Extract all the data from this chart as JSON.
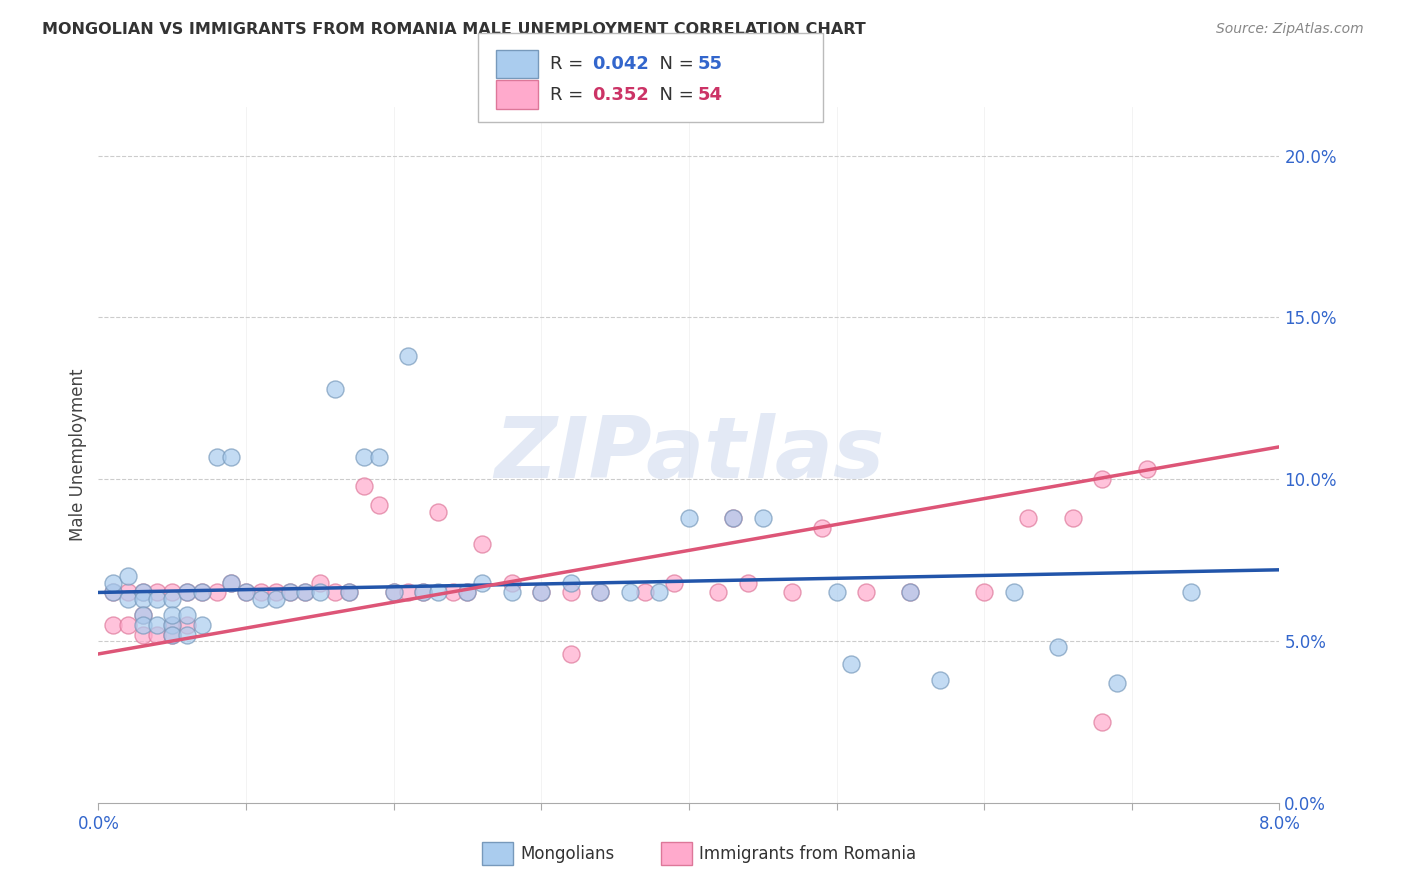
{
  "title": "MONGOLIAN VS IMMIGRANTS FROM ROMANIA MALE UNEMPLOYMENT CORRELATION CHART",
  "source": "Source: ZipAtlas.com",
  "ylabel": "Male Unemployment",
  "watermark": "ZIPatlas",
  "mongolians_color": "#aaccee",
  "mongolians_edge": "#7799bb",
  "romania_color": "#ffaacc",
  "romania_edge": "#dd7799",
  "line_mongolians_color": "#2255aa",
  "line_romania_color": "#dd5577",
  "mongolians_R": "0.042",
  "mongolians_N": "55",
  "romania_R": "0.352",
  "romania_N": "54",
  "mongolians_x": [
    0.001,
    0.001,
    0.002,
    0.002,
    0.003,
    0.003,
    0.003,
    0.003,
    0.004,
    0.004,
    0.005,
    0.005,
    0.005,
    0.005,
    0.006,
    0.006,
    0.006,
    0.007,
    0.007,
    0.008,
    0.009,
    0.009,
    0.01,
    0.011,
    0.012,
    0.013,
    0.014,
    0.015,
    0.016,
    0.017,
    0.018,
    0.019,
    0.02,
    0.021,
    0.022,
    0.023,
    0.025,
    0.026,
    0.028,
    0.03,
    0.032,
    0.034,
    0.036,
    0.038,
    0.04,
    0.043,
    0.045,
    0.05,
    0.051,
    0.055,
    0.057,
    0.062,
    0.065,
    0.069,
    0.074
  ],
  "mongolians_y": [
    0.065,
    0.068,
    0.07,
    0.063,
    0.065,
    0.063,
    0.058,
    0.055,
    0.063,
    0.055,
    0.063,
    0.055,
    0.058,
    0.052,
    0.065,
    0.058,
    0.052,
    0.065,
    0.055,
    0.107,
    0.107,
    0.068,
    0.065,
    0.063,
    0.063,
    0.065,
    0.065,
    0.065,
    0.128,
    0.065,
    0.107,
    0.107,
    0.065,
    0.138,
    0.065,
    0.065,
    0.065,
    0.068,
    0.065,
    0.065,
    0.068,
    0.065,
    0.065,
    0.065,
    0.088,
    0.088,
    0.088,
    0.065,
    0.043,
    0.065,
    0.038,
    0.065,
    0.048,
    0.037,
    0.065
  ],
  "romania_x": [
    0.001,
    0.001,
    0.002,
    0.002,
    0.003,
    0.003,
    0.003,
    0.004,
    0.004,
    0.005,
    0.005,
    0.005,
    0.006,
    0.006,
    0.007,
    0.008,
    0.009,
    0.01,
    0.011,
    0.012,
    0.013,
    0.014,
    0.015,
    0.016,
    0.017,
    0.018,
    0.019,
    0.02,
    0.021,
    0.022,
    0.023,
    0.024,
    0.025,
    0.026,
    0.028,
    0.03,
    0.032,
    0.034,
    0.037,
    0.039,
    0.042,
    0.044,
    0.047,
    0.049,
    0.052,
    0.055,
    0.06,
    0.063,
    0.066,
    0.068,
    0.071,
    0.032,
    0.043,
    0.068
  ],
  "romania_y": [
    0.065,
    0.055,
    0.065,
    0.055,
    0.065,
    0.058,
    0.052,
    0.065,
    0.052,
    0.065,
    0.055,
    0.052,
    0.065,
    0.055,
    0.065,
    0.065,
    0.068,
    0.065,
    0.065,
    0.065,
    0.065,
    0.065,
    0.068,
    0.065,
    0.065,
    0.098,
    0.092,
    0.065,
    0.065,
    0.065,
    0.09,
    0.065,
    0.065,
    0.08,
    0.068,
    0.065,
    0.046,
    0.065,
    0.065,
    0.068,
    0.065,
    0.068,
    0.065,
    0.085,
    0.065,
    0.065,
    0.065,
    0.088,
    0.088,
    0.025,
    0.103,
    0.065,
    0.088,
    0.1
  ],
  "xlim": [
    0,
    0.08
  ],
  "ylim": [
    0,
    0.215
  ],
  "yticks": [
    0.0,
    0.05,
    0.1,
    0.15,
    0.2
  ],
  "ytick_labels": [
    "0.0%",
    "5.0%",
    "10.0%",
    "15.0%",
    "20.0%"
  ],
  "xtick_labels_show": [
    "0.0%",
    "8.0%"
  ]
}
